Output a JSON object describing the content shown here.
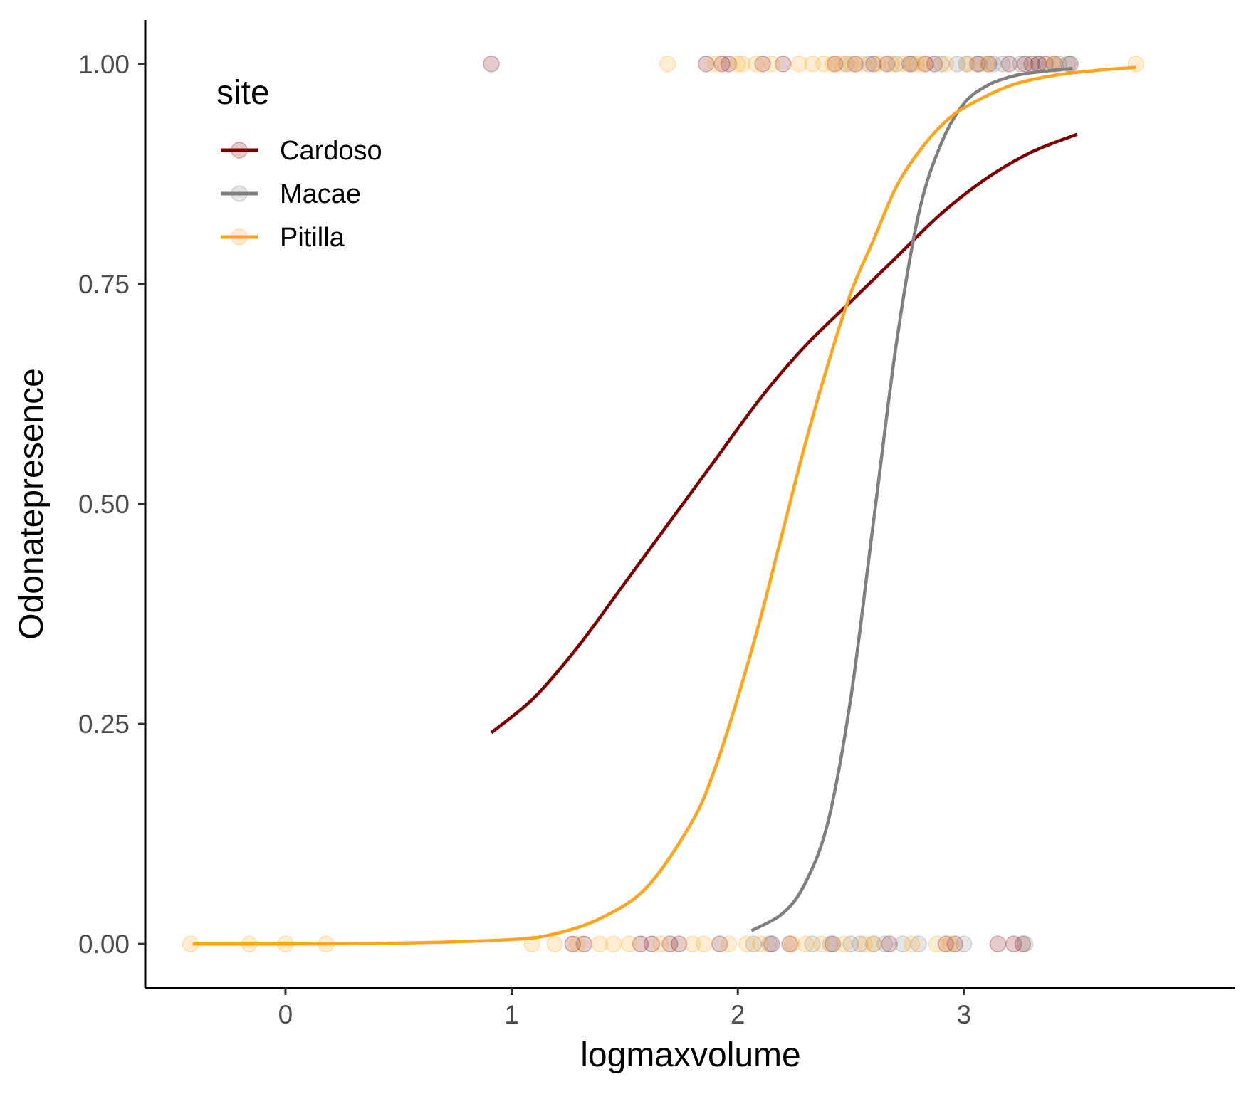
{
  "chart_data": {
    "type": "scatter",
    "xlabel": "logmaxvolume",
    "ylabel": "Odonatepresence",
    "xlim": [
      -0.62,
      4.2
    ],
    "ylim": [
      -0.05,
      1.05
    ],
    "x_ticks": [
      0,
      1,
      2,
      3
    ],
    "x_tick_labels": [
      "0",
      "1",
      "2",
      "3"
    ],
    "y_ticks": [
      0,
      0.25,
      0.5,
      0.75,
      1
    ],
    "y_tick_labels": [
      "0.00",
      "0.25",
      "0.50",
      "0.75",
      "1.00"
    ],
    "grid": false,
    "legend": {
      "title": "site",
      "position": "top-left inside plot",
      "entries": [
        {
          "label": "Cardoso",
          "color": "#7f0000"
        },
        {
          "label": "Macae",
          "color": "#7f7f7f"
        },
        {
          "label": "Pitilla",
          "color": "#ffa51c"
        }
      ]
    },
    "point_alpha": 0.2,
    "series": [
      {
        "name": "Cardoso",
        "color": "#7f0000",
        "points": [
          {
            "x": 0.91,
            "y": 1
          },
          {
            "x": 1.86,
            "y": 1
          },
          {
            "x": 1.93,
            "y": 1
          },
          {
            "x": 1.96,
            "y": 1
          },
          {
            "x": 2.11,
            "y": 1
          },
          {
            "x": 2.2,
            "y": 1
          },
          {
            "x": 2.43,
            "y": 1
          },
          {
            "x": 2.52,
            "y": 1
          },
          {
            "x": 2.6,
            "y": 1
          },
          {
            "x": 2.66,
            "y": 1
          },
          {
            "x": 2.76,
            "y": 1
          },
          {
            "x": 2.83,
            "y": 1
          },
          {
            "x": 2.87,
            "y": 1
          },
          {
            "x": 3.06,
            "y": 1
          },
          {
            "x": 3.11,
            "y": 1
          },
          {
            "x": 3.2,
            "y": 1
          },
          {
            "x": 3.27,
            "y": 1
          },
          {
            "x": 3.3,
            "y": 1
          },
          {
            "x": 3.33,
            "y": 1
          },
          {
            "x": 3.36,
            "y": 1
          },
          {
            "x": 3.4,
            "y": 1
          },
          {
            "x": 3.47,
            "y": 1
          },
          {
            "x": 1.27,
            "y": 0
          },
          {
            "x": 1.32,
            "y": 0
          },
          {
            "x": 1.57,
            "y": 0
          },
          {
            "x": 1.62,
            "y": 0
          },
          {
            "x": 1.7,
            "y": 0
          },
          {
            "x": 1.74,
            "y": 0
          },
          {
            "x": 1.92,
            "y": 0
          },
          {
            "x": 2.15,
            "y": 0
          },
          {
            "x": 2.23,
            "y": 0
          },
          {
            "x": 2.42,
            "y": 0
          },
          {
            "x": 2.67,
            "y": 0
          },
          {
            "x": 2.92,
            "y": 0
          },
          {
            "x": 2.96,
            "y": 0
          },
          {
            "x": 3.15,
            "y": 0
          },
          {
            "x": 3.22,
            "y": 0
          },
          {
            "x": 3.26,
            "y": 0
          }
        ],
        "curve": [
          [
            0.91,
            0.24
          ],
          [
            1.1,
            0.28
          ],
          [
            1.3,
            0.34
          ],
          [
            1.5,
            0.41
          ],
          [
            1.7,
            0.48
          ],
          [
            1.9,
            0.55
          ],
          [
            2.1,
            0.62
          ],
          [
            2.3,
            0.68
          ],
          [
            2.5,
            0.73
          ],
          [
            2.7,
            0.78
          ],
          [
            2.9,
            0.83
          ],
          [
            3.1,
            0.87
          ],
          [
            3.3,
            0.9
          ],
          [
            3.5,
            0.92
          ]
        ]
      },
      {
        "name": "Macae",
        "color": "#7f7f7f",
        "points": [
          {
            "x": 2.48,
            "y": 1
          },
          {
            "x": 2.58,
            "y": 1
          },
          {
            "x": 2.7,
            "y": 1
          },
          {
            "x": 2.77,
            "y": 1
          },
          {
            "x": 2.9,
            "y": 1
          },
          {
            "x": 2.97,
            "y": 1
          },
          {
            "x": 3.01,
            "y": 1
          },
          {
            "x": 3.07,
            "y": 1
          },
          {
            "x": 3.13,
            "y": 1
          },
          {
            "x": 3.17,
            "y": 1
          },
          {
            "x": 3.25,
            "y": 1
          },
          {
            "x": 3.33,
            "y": 1
          },
          {
            "x": 3.42,
            "y": 1
          },
          {
            "x": 3.46,
            "y": 1
          },
          {
            "x": 2.07,
            "y": 0
          },
          {
            "x": 2.14,
            "y": 0
          },
          {
            "x": 2.33,
            "y": 0
          },
          {
            "x": 2.41,
            "y": 0
          },
          {
            "x": 2.5,
            "y": 0
          },
          {
            "x": 2.54,
            "y": 0
          },
          {
            "x": 2.6,
            "y": 0
          },
          {
            "x": 2.65,
            "y": 0
          },
          {
            "x": 2.73,
            "y": 0
          },
          {
            "x": 2.8,
            "y": 0
          },
          {
            "x": 3.0,
            "y": 0
          },
          {
            "x": 3.27,
            "y": 0
          }
        ],
        "curve": [
          [
            2.06,
            0.015
          ],
          [
            2.2,
            0.035
          ],
          [
            2.3,
            0.07
          ],
          [
            2.4,
            0.14
          ],
          [
            2.5,
            0.28
          ],
          [
            2.6,
            0.48
          ],
          [
            2.7,
            0.68
          ],
          [
            2.8,
            0.83
          ],
          [
            2.9,
            0.91
          ],
          [
            3.0,
            0.955
          ],
          [
            3.1,
            0.975
          ],
          [
            3.2,
            0.985
          ],
          [
            3.3,
            0.99
          ],
          [
            3.48,
            0.995
          ]
        ]
      },
      {
        "name": "Pitilla",
        "color": "#ffa51c",
        "points": [
          {
            "x": 1.69,
            "y": 1
          },
          {
            "x": 1.9,
            "y": 1
          },
          {
            "x": 2.0,
            "y": 1
          },
          {
            "x": 2.02,
            "y": 1
          },
          {
            "x": 2.08,
            "y": 1
          },
          {
            "x": 2.15,
            "y": 1
          },
          {
            "x": 2.27,
            "y": 1
          },
          {
            "x": 2.33,
            "y": 1
          },
          {
            "x": 2.38,
            "y": 1
          },
          {
            "x": 2.42,
            "y": 1
          },
          {
            "x": 2.46,
            "y": 1
          },
          {
            "x": 2.5,
            "y": 1
          },
          {
            "x": 2.55,
            "y": 1
          },
          {
            "x": 2.62,
            "y": 1
          },
          {
            "x": 2.68,
            "y": 1
          },
          {
            "x": 2.73,
            "y": 1
          },
          {
            "x": 2.79,
            "y": 1
          },
          {
            "x": 2.82,
            "y": 1
          },
          {
            "x": 2.92,
            "y": 1
          },
          {
            "x": 3.02,
            "y": 1
          },
          {
            "x": 3.1,
            "y": 1
          },
          {
            "x": 3.4,
            "y": 1
          },
          {
            "x": 3.76,
            "y": 1
          },
          {
            "x": -0.42,
            "y": 0
          },
          {
            "x": -0.16,
            "y": 0
          },
          {
            "x": 0.0,
            "y": 0
          },
          {
            "x": 0.18,
            "y": 0
          },
          {
            "x": 1.09,
            "y": 0
          },
          {
            "x": 1.19,
            "y": 0
          },
          {
            "x": 1.29,
            "y": 0
          },
          {
            "x": 1.39,
            "y": 0
          },
          {
            "x": 1.45,
            "y": 0
          },
          {
            "x": 1.52,
            "y": 0
          },
          {
            "x": 1.66,
            "y": 0
          },
          {
            "x": 1.8,
            "y": 0
          },
          {
            "x": 1.85,
            "y": 0
          },
          {
            "x": 1.96,
            "y": 0
          },
          {
            "x": 2.04,
            "y": 0
          },
          {
            "x": 2.1,
            "y": 0
          },
          {
            "x": 2.24,
            "y": 0
          },
          {
            "x": 2.3,
            "y": 0
          },
          {
            "x": 2.37,
            "y": 0
          },
          {
            "x": 2.47,
            "y": 0
          },
          {
            "x": 2.56,
            "y": 0
          },
          {
            "x": 2.6,
            "y": 0
          },
          {
            "x": 2.77,
            "y": 0
          },
          {
            "x": 2.88,
            "y": 0
          },
          {
            "x": 2.94,
            "y": 0
          }
        ],
        "curve": [
          [
            -0.41,
            0.0
          ],
          [
            0.0,
            0.0
          ],
          [
            0.5,
            0.001
          ],
          [
            1.0,
            0.005
          ],
          [
            1.2,
            0.012
          ],
          [
            1.4,
            0.03
          ],
          [
            1.6,
            0.065
          ],
          [
            1.8,
            0.14
          ],
          [
            1.9,
            0.2
          ],
          [
            2.0,
            0.28
          ],
          [
            2.1,
            0.37
          ],
          [
            2.2,
            0.47
          ],
          [
            2.3,
            0.57
          ],
          [
            2.4,
            0.66
          ],
          [
            2.5,
            0.74
          ],
          [
            2.6,
            0.8
          ],
          [
            2.7,
            0.86
          ],
          [
            2.8,
            0.9
          ],
          [
            2.9,
            0.93
          ],
          [
            3.0,
            0.95
          ],
          [
            3.2,
            0.975
          ],
          [
            3.4,
            0.987
          ],
          [
            3.6,
            0.993
          ],
          [
            3.76,
            0.996
          ]
        ]
      }
    ]
  }
}
